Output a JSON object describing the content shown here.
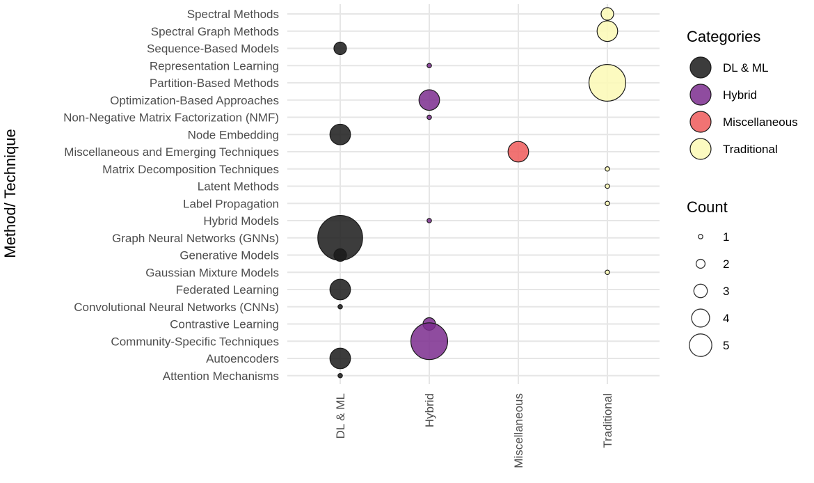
{
  "chart_data": {
    "type": "scatter",
    "title": "",
    "xlabel": "",
    "ylabel": "Method/ Technique",
    "x_categories": [
      "DL & ML",
      "Hybrid",
      "Miscellaneous",
      "Traditional"
    ],
    "y_categories": [
      "Attention Mechanisms",
      "Autoencoders",
      "Community-Specific Techniques",
      "Contrastive Learning",
      "Convolutional Neural Networks (CNNs)",
      "Federated Learning",
      "Gaussian Mixture Models",
      "Generative Models",
      "Graph Neural Networks (GNNs)",
      "Hybrid Models",
      "Label Propagation",
      "Latent Methods",
      "Matrix Decomposition Techniques",
      "Miscellaneous and Emerging Techniques",
      "Node Embedding",
      "Non-Negative Matrix Factorization (NMF)",
      "Optimization-Based Approaches",
      "Partition-Based Methods",
      "Representation Learning",
      "Sequence-Based Models",
      "Spectral Graph Methods",
      "Spectral Methods"
    ],
    "points": [
      {
        "method": "Spectral Methods",
        "category": "Traditional",
        "count": 2
      },
      {
        "method": "Spectral Graph Methods",
        "category": "Traditional",
        "count": 3
      },
      {
        "method": "Sequence-Based Models",
        "category": "DL & ML",
        "count": 2
      },
      {
        "method": "Representation Learning",
        "category": "Hybrid",
        "count": 1
      },
      {
        "method": "Partition-Based Methods",
        "category": "Traditional",
        "count": 5
      },
      {
        "method": "Optimization-Based Approaches",
        "category": "Hybrid",
        "count": 3
      },
      {
        "method": "Non-Negative Matrix Factorization (NMF)",
        "category": "Hybrid",
        "count": 1
      },
      {
        "method": "Node Embedding",
        "category": "DL & ML",
        "count": 3
      },
      {
        "method": "Miscellaneous and Emerging Techniques",
        "category": "Miscellaneous",
        "count": 3
      },
      {
        "method": "Matrix Decomposition Techniques",
        "category": "Traditional",
        "count": 1
      },
      {
        "method": "Latent Methods",
        "category": "Traditional",
        "count": 1
      },
      {
        "method": "Label Propagation",
        "category": "Traditional",
        "count": 1
      },
      {
        "method": "Hybrid Models",
        "category": "Hybrid",
        "count": 1
      },
      {
        "method": "Graph Neural Networks (GNNs)",
        "category": "DL & ML",
        "count": 6
      },
      {
        "method": "Generative Models",
        "category": "DL & ML",
        "count": 2
      },
      {
        "method": "Gaussian Mixture Models",
        "category": "Traditional",
        "count": 1
      },
      {
        "method": "Federated Learning",
        "category": "DL & ML",
        "count": 3
      },
      {
        "method": "Convolutional Neural Networks (CNNs)",
        "category": "DL & ML",
        "count": 1
      },
      {
        "method": "Contrastive Learning",
        "category": "Hybrid",
        "count": 2
      },
      {
        "method": "Community-Specific Techniques",
        "category": "Hybrid",
        "count": 5
      },
      {
        "method": "Autoencoders",
        "category": "DL & ML",
        "count": 3
      },
      {
        "method": "Attention Mechanisms",
        "category": "DL & ML",
        "count": 1
      }
    ],
    "legend": {
      "categories_title": "Categories",
      "categories": [
        {
          "label": "DL & ML",
          "color": "#1a1a1a"
        },
        {
          "label": "Hybrid",
          "color": "#7b2d8e"
        },
        {
          "label": "Miscellaneous",
          "color": "#ee5a5a"
        },
        {
          "label": "Traditional",
          "color": "#fbf9b5"
        }
      ],
      "count_title": "Count",
      "count_values": [
        1,
        2,
        3,
        4,
        5
      ]
    },
    "grid": true,
    "legend_position": "right"
  }
}
